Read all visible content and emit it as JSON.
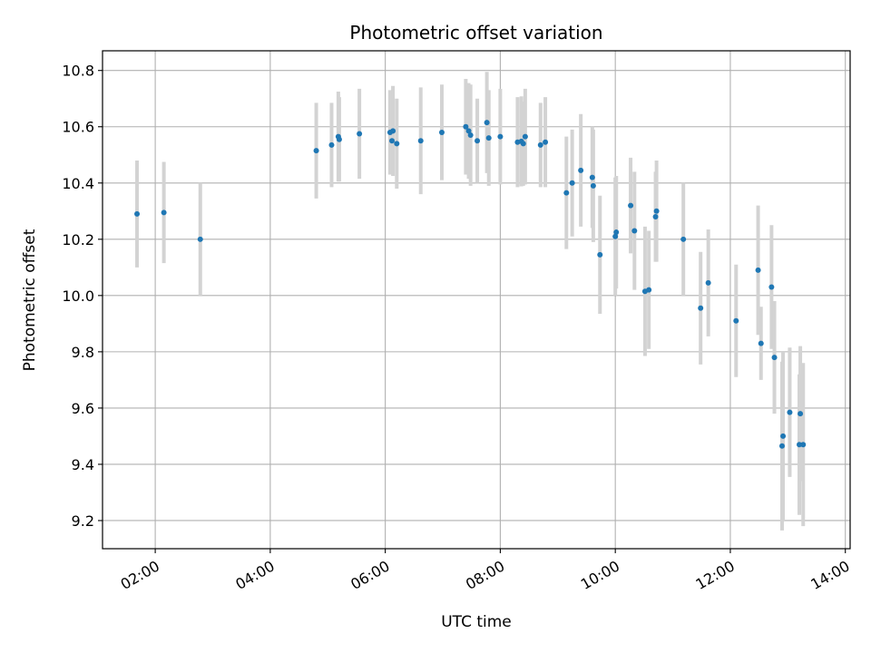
{
  "chart_data": {
    "type": "scatter",
    "title": "Photometric offset variation",
    "xlabel": "UTC time",
    "ylabel": "Photometric offset",
    "xlim": [
      "01:05",
      "14:05"
    ],
    "ylim": [
      9.1,
      10.87
    ],
    "x_ticks": [
      "02:00",
      "04:00",
      "06:00",
      "08:00",
      "10:00",
      "12:00",
      "14:00"
    ],
    "y_ticks": [
      9.2,
      9.4,
      9.6,
      9.8,
      10.0,
      10.2,
      10.4,
      10.6,
      10.8
    ],
    "y_tick_labels": [
      "9.2",
      "9.4",
      "9.6",
      "9.8",
      "10.0",
      "10.2",
      "10.4",
      "10.6",
      "10.8"
    ],
    "grid": true,
    "errorbar_color": "#d3d3d3",
    "point_color": "#1f77b4",
    "series": [
      {
        "x": [
          "01:41",
          "02:09",
          "02:47",
          "04:48",
          "05:04",
          "05:11",
          "05:12",
          "05:33",
          "06:05",
          "06:07",
          "06:08",
          "06:12",
          "06:37",
          "06:59",
          "07:24",
          "07:27",
          "07:29",
          "07:36",
          "07:46",
          "07:48",
          "08:00",
          "08:18",
          "08:22",
          "08:24",
          "08:26",
          "08:42",
          "08:47",
          "09:09",
          "09:15",
          "09:24",
          "09:36",
          "09:37",
          "09:44",
          "10:00",
          "10:01",
          "10:16",
          "10:20",
          "10:31",
          "10:35",
          "10:42",
          "10:43",
          "11:11",
          "11:29",
          "11:37",
          "12:06",
          "12:29",
          "12:32",
          "12:43",
          "12:46",
          "12:54",
          "12:55",
          "13:02",
          "13:12",
          "13:13",
          "13:16"
        ],
        "y": [
          10.29,
          10.295,
          10.2,
          10.515,
          10.535,
          10.565,
          10.555,
          10.575,
          10.58,
          10.55,
          10.585,
          10.54,
          10.55,
          10.58,
          10.6,
          10.585,
          10.57,
          10.55,
          10.615,
          10.56,
          10.565,
          10.545,
          10.548,
          10.54,
          10.565,
          10.535,
          10.545,
          10.365,
          10.4,
          10.445,
          10.42,
          10.39,
          10.145,
          10.21,
          10.225,
          10.32,
          10.23,
          10.015,
          10.02,
          10.28,
          10.3,
          10.2,
          9.955,
          10.045,
          9.91,
          10.09,
          9.83,
          10.03,
          9.78,
          9.465,
          9.5,
          9.585,
          9.47,
          9.58,
          9.47
        ],
        "yerr": [
          0.19,
          0.18,
          0.2,
          0.17,
          0.15,
          0.16,
          0.15,
          0.16,
          0.15,
          0.12,
          0.16,
          0.16,
          0.19,
          0.17,
          0.17,
          0.17,
          0.18,
          0.15,
          0.18,
          0.17,
          0.17,
          0.16,
          0.16,
          0.15,
          0.17,
          0.15,
          0.16,
          0.2,
          0.19,
          0.2,
          0.18,
          0.2,
          0.21,
          0.21,
          0.2,
          0.17,
          0.21,
          0.23,
          0.21,
          0.16,
          0.18,
          0.2,
          0.2,
          0.19,
          0.2,
          0.23,
          0.13,
          0.22,
          0.2,
          0.3,
          0.3,
          0.23,
          0.25,
          0.24,
          0.29
        ]
      }
    ]
  }
}
